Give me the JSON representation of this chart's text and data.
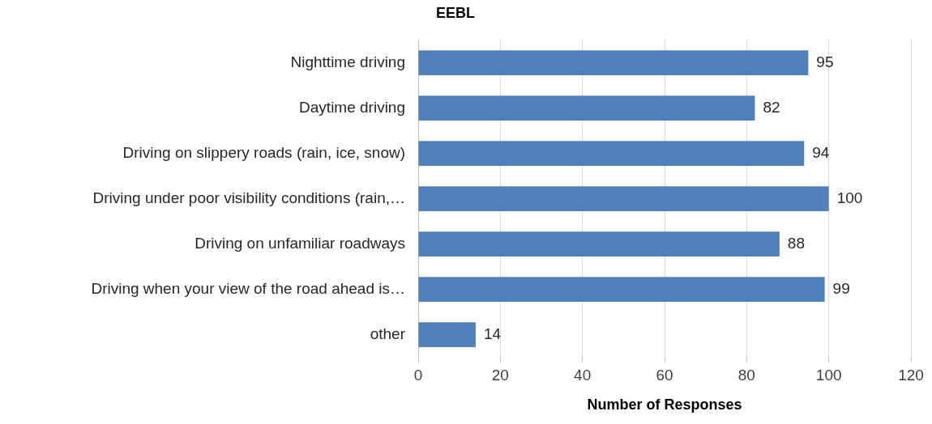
{
  "chart_data": {
    "type": "bar",
    "orientation": "horizontal",
    "title": "EEBL",
    "xlabel": "Number of Responses",
    "categories": [
      "Nighttime driving",
      "Daytime driving",
      "Driving on slippery roads (rain, ice, snow)",
      "Driving under poor visibility conditions (rain,…",
      "Driving on unfamiliar roadways",
      "Driving when your view of the road ahead is…",
      "other"
    ],
    "values": [
      95,
      82,
      94,
      100,
      88,
      99,
      14
    ],
    "color": "#4f81bd",
    "xlim": [
      0,
      120
    ],
    "xticks": [
      0,
      20,
      40,
      60,
      80,
      100,
      120
    ],
    "grid": "x",
    "data_labels": true
  }
}
